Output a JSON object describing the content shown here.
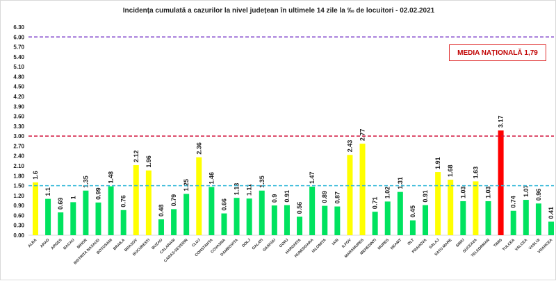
{
  "chart_data": {
    "type": "bar",
    "title": "Incidența cumulată a cazurilor la nivel județean în ultimele 14 zile   la ‰ de locuitori  - 02.02.2021",
    "annotation": "MEDIA NAȚIONALĂ 1,79",
    "ylim": [
      0,
      6.3
    ],
    "yticks": [
      "0.00",
      "0.30",
      "0.60",
      "0.90",
      "1.20",
      "1.50",
      "1.80",
      "2.10",
      "2.40",
      "2.70",
      "3.00",
      "3.30",
      "3.60",
      "3.90",
      "4.20",
      "4.50",
      "4.80",
      "5.10",
      "5.40",
      "5.70",
      "6.00",
      "6.30"
    ],
    "thresholds": [
      {
        "value": 1.5,
        "color": "#2fb7d8"
      },
      {
        "value": 3.0,
        "color": "#d0103a"
      },
      {
        "value": 6.0,
        "color": "#7a3bc8"
      }
    ],
    "colors": {
      "low": "#00e35f",
      "mid": "#ffff00",
      "high": "#ff0000"
    },
    "categories": [
      "ALBA",
      "ARAD",
      "ARGES",
      "BACAU",
      "BIHOR",
      "BISTRITA NASAUD",
      "BOTOSANI",
      "BRAILA",
      "BRASOV",
      "BUCURESTI",
      "BUZAU",
      "CALARASI",
      "CARAS-SEVERIN",
      "CLUJ",
      "CONSTANTA",
      "COVASNA",
      "DAMBOVITA",
      "DOLJ",
      "GALATI",
      "GIURGIU",
      "GORJ",
      "HARGHITA",
      "HUNEDOARA",
      "IALOMITA",
      "IASI",
      "ILFOV",
      "MARAMURES",
      "MEHEDINTI",
      "MURES",
      "NEAMT",
      "OLT",
      "PRAHOVA",
      "SALAJ",
      "SATU MARE",
      "SIBIU",
      "SUCEAVA",
      "TELEORMAN",
      "TIMIS",
      "TULCEA",
      "VALCEA",
      "VASLUI",
      "VRANCEA"
    ],
    "values": [
      1.6,
      1.1,
      0.69,
      1,
      1.35,
      0.99,
      1.48,
      0.76,
      2.12,
      1.96,
      0.48,
      0.79,
      1.25,
      2.36,
      1.46,
      0.66,
      1.13,
      1.11,
      1.35,
      0.9,
      0.91,
      0.56,
      1.47,
      0.89,
      0.87,
      2.43,
      2.77,
      0.71,
      1.02,
      1.31,
      0.45,
      0.91,
      1.91,
      1.68,
      1.03,
      1.63,
      1.03,
      3.17,
      0.74,
      1.07,
      0.96,
      0.41
    ]
  }
}
